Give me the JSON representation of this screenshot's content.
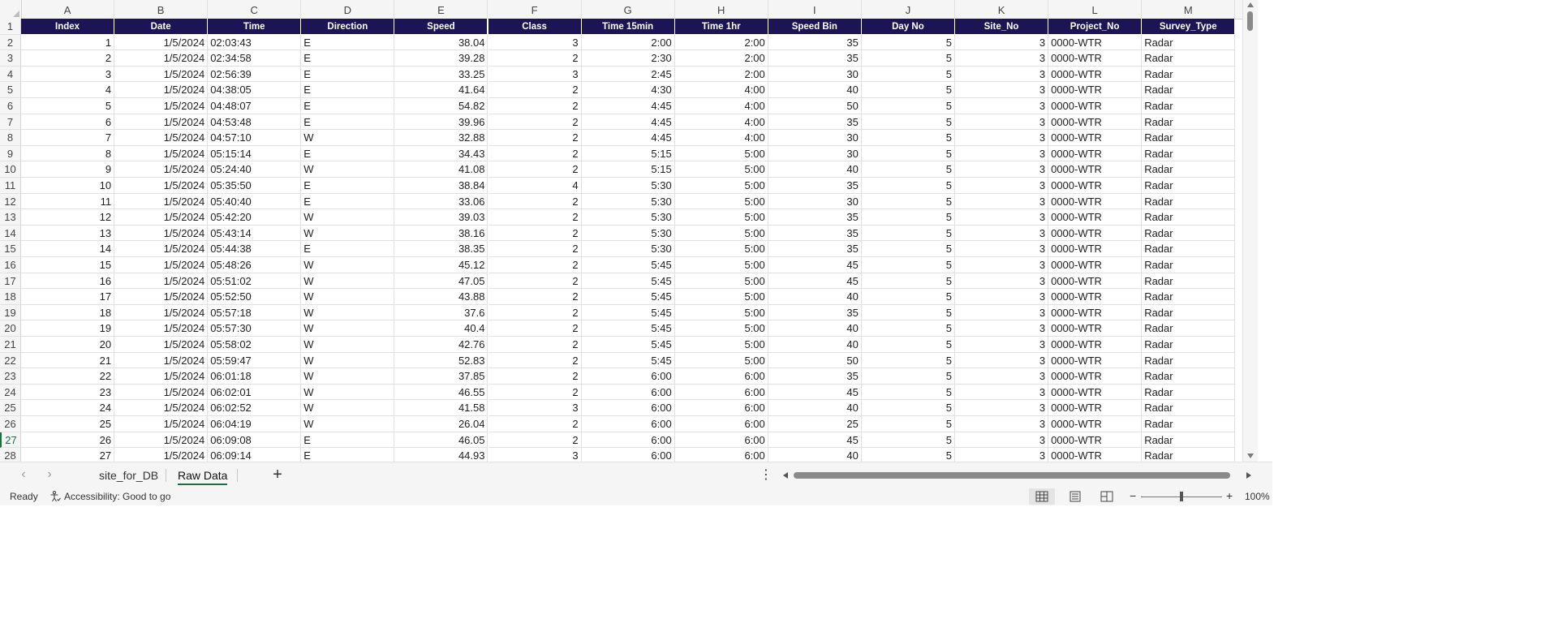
{
  "columns": [
    {
      "letter": "A",
      "header": "Index"
    },
    {
      "letter": "B",
      "header": "Date"
    },
    {
      "letter": "C",
      "header": "Time"
    },
    {
      "letter": "D",
      "header": "Direction"
    },
    {
      "letter": "E",
      "header": "Speed"
    },
    {
      "letter": "F",
      "header": "Class"
    },
    {
      "letter": "G",
      "header": "Time 15min"
    },
    {
      "letter": "H",
      "header": "Time 1hr"
    },
    {
      "letter": "I",
      "header": "Speed Bin"
    },
    {
      "letter": "J",
      "header": "Day No"
    },
    {
      "letter": "K",
      "header": "Site_No"
    },
    {
      "letter": "L",
      "header": "Project_No"
    },
    {
      "letter": "M",
      "header": "Survey_Type"
    }
  ],
  "row_numbers": [
    "1",
    "2",
    "3",
    "4",
    "5",
    "6",
    "7",
    "8",
    "9",
    "10",
    "11",
    "12",
    "13",
    "14",
    "15",
    "16",
    "17",
    "18",
    "19",
    "20",
    "21",
    "22",
    "23",
    "24",
    "25",
    "26",
    "27",
    "28"
  ],
  "active_row": "27",
  "rows": [
    [
      "1",
      "1/5/2024",
      "02:03:43",
      "E",
      "38.04",
      "3",
      "2:00",
      "2:00",
      "35",
      "5",
      "3",
      "0000-WTR",
      "Radar"
    ],
    [
      "2",
      "1/5/2024",
      "02:34:58",
      "E",
      "39.28",
      "2",
      "2:30",
      "2:00",
      "35",
      "5",
      "3",
      "0000-WTR",
      "Radar"
    ],
    [
      "3",
      "1/5/2024",
      "02:56:39",
      "E",
      "33.25",
      "3",
      "2:45",
      "2:00",
      "30",
      "5",
      "3",
      "0000-WTR",
      "Radar"
    ],
    [
      "4",
      "1/5/2024",
      "04:38:05",
      "E",
      "41.64",
      "2",
      "4:30",
      "4:00",
      "40",
      "5",
      "3",
      "0000-WTR",
      "Radar"
    ],
    [
      "5",
      "1/5/2024",
      "04:48:07",
      "E",
      "54.82",
      "2",
      "4:45",
      "4:00",
      "50",
      "5",
      "3",
      "0000-WTR",
      "Radar"
    ],
    [
      "6",
      "1/5/2024",
      "04:53:48",
      "E",
      "39.96",
      "2",
      "4:45",
      "4:00",
      "35",
      "5",
      "3",
      "0000-WTR",
      "Radar"
    ],
    [
      "7",
      "1/5/2024",
      "04:57:10",
      "W",
      "32.88",
      "2",
      "4:45",
      "4:00",
      "30",
      "5",
      "3",
      "0000-WTR",
      "Radar"
    ],
    [
      "8",
      "1/5/2024",
      "05:15:14",
      "E",
      "34.43",
      "2",
      "5:15",
      "5:00",
      "30",
      "5",
      "3",
      "0000-WTR",
      "Radar"
    ],
    [
      "9",
      "1/5/2024",
      "05:24:40",
      "W",
      "41.08",
      "2",
      "5:15",
      "5:00",
      "40",
      "5",
      "3",
      "0000-WTR",
      "Radar"
    ],
    [
      "10",
      "1/5/2024",
      "05:35:50",
      "E",
      "38.84",
      "4",
      "5:30",
      "5:00",
      "35",
      "5",
      "3",
      "0000-WTR",
      "Radar"
    ],
    [
      "11",
      "1/5/2024",
      "05:40:40",
      "E",
      "33.06",
      "2",
      "5:30",
      "5:00",
      "30",
      "5",
      "3",
      "0000-WTR",
      "Radar"
    ],
    [
      "12",
      "1/5/2024",
      "05:42:20",
      "W",
      "39.03",
      "2",
      "5:30",
      "5:00",
      "35",
      "5",
      "3",
      "0000-WTR",
      "Radar"
    ],
    [
      "13",
      "1/5/2024",
      "05:43:14",
      "W",
      "38.16",
      "2",
      "5:30",
      "5:00",
      "35",
      "5",
      "3",
      "0000-WTR",
      "Radar"
    ],
    [
      "14",
      "1/5/2024",
      "05:44:38",
      "E",
      "38.35",
      "2",
      "5:30",
      "5:00",
      "35",
      "5",
      "3",
      "0000-WTR",
      "Radar"
    ],
    [
      "15",
      "1/5/2024",
      "05:48:26",
      "W",
      "45.12",
      "2",
      "5:45",
      "5:00",
      "45",
      "5",
      "3",
      "0000-WTR",
      "Radar"
    ],
    [
      "16",
      "1/5/2024",
      "05:51:02",
      "W",
      "47.05",
      "2",
      "5:45",
      "5:00",
      "45",
      "5",
      "3",
      "0000-WTR",
      "Radar"
    ],
    [
      "17",
      "1/5/2024",
      "05:52:50",
      "W",
      "43.88",
      "2",
      "5:45",
      "5:00",
      "40",
      "5",
      "3",
      "0000-WTR",
      "Radar"
    ],
    [
      "18",
      "1/5/2024",
      "05:57:18",
      "W",
      "37.6",
      "2",
      "5:45",
      "5:00",
      "35",
      "5",
      "3",
      "0000-WTR",
      "Radar"
    ],
    [
      "19",
      "1/5/2024",
      "05:57:30",
      "W",
      "40.4",
      "2",
      "5:45",
      "5:00",
      "40",
      "5",
      "3",
      "0000-WTR",
      "Radar"
    ],
    [
      "20",
      "1/5/2024",
      "05:58:02",
      "W",
      "42.76",
      "2",
      "5:45",
      "5:00",
      "40",
      "5",
      "3",
      "0000-WTR",
      "Radar"
    ],
    [
      "21",
      "1/5/2024",
      "05:59:47",
      "W",
      "52.83",
      "2",
      "5:45",
      "5:00",
      "50",
      "5",
      "3",
      "0000-WTR",
      "Radar"
    ],
    [
      "22",
      "1/5/2024",
      "06:01:18",
      "W",
      "37.85",
      "2",
      "6:00",
      "6:00",
      "35",
      "5",
      "3",
      "0000-WTR",
      "Radar"
    ],
    [
      "23",
      "1/5/2024",
      "06:02:01",
      "W",
      "46.55",
      "2",
      "6:00",
      "6:00",
      "45",
      "5",
      "3",
      "0000-WTR",
      "Radar"
    ],
    [
      "24",
      "1/5/2024",
      "06:02:52",
      "W",
      "41.58",
      "3",
      "6:00",
      "6:00",
      "40",
      "5",
      "3",
      "0000-WTR",
      "Radar"
    ],
    [
      "25",
      "1/5/2024",
      "06:04:19",
      "W",
      "26.04",
      "2",
      "6:00",
      "6:00",
      "25",
      "5",
      "3",
      "0000-WTR",
      "Radar"
    ],
    [
      "26",
      "1/5/2024",
      "06:09:08",
      "E",
      "46.05",
      "2",
      "6:00",
      "6:00",
      "45",
      "5",
      "3",
      "0000-WTR",
      "Radar"
    ],
    [
      "27",
      "1/5/2024",
      "06:09:14",
      "E",
      "44.93",
      "3",
      "6:00",
      "6:00",
      "40",
      "5",
      "3",
      "0000-WTR",
      "Radar"
    ]
  ],
  "sheet_tabs": [
    {
      "label": "site_for_DB",
      "active": false
    },
    {
      "label": "Raw Data",
      "active": true
    }
  ],
  "add_sheet_label": "+",
  "status": {
    "ready": "Ready",
    "accessibility": "Accessibility: Good to go",
    "zoom": "100%",
    "zoom_minus": "−",
    "zoom_plus": "+"
  },
  "colors": {
    "header_bg": "#1c1454",
    "header_text": "#ffffff",
    "accent": "#1e6c41"
  }
}
